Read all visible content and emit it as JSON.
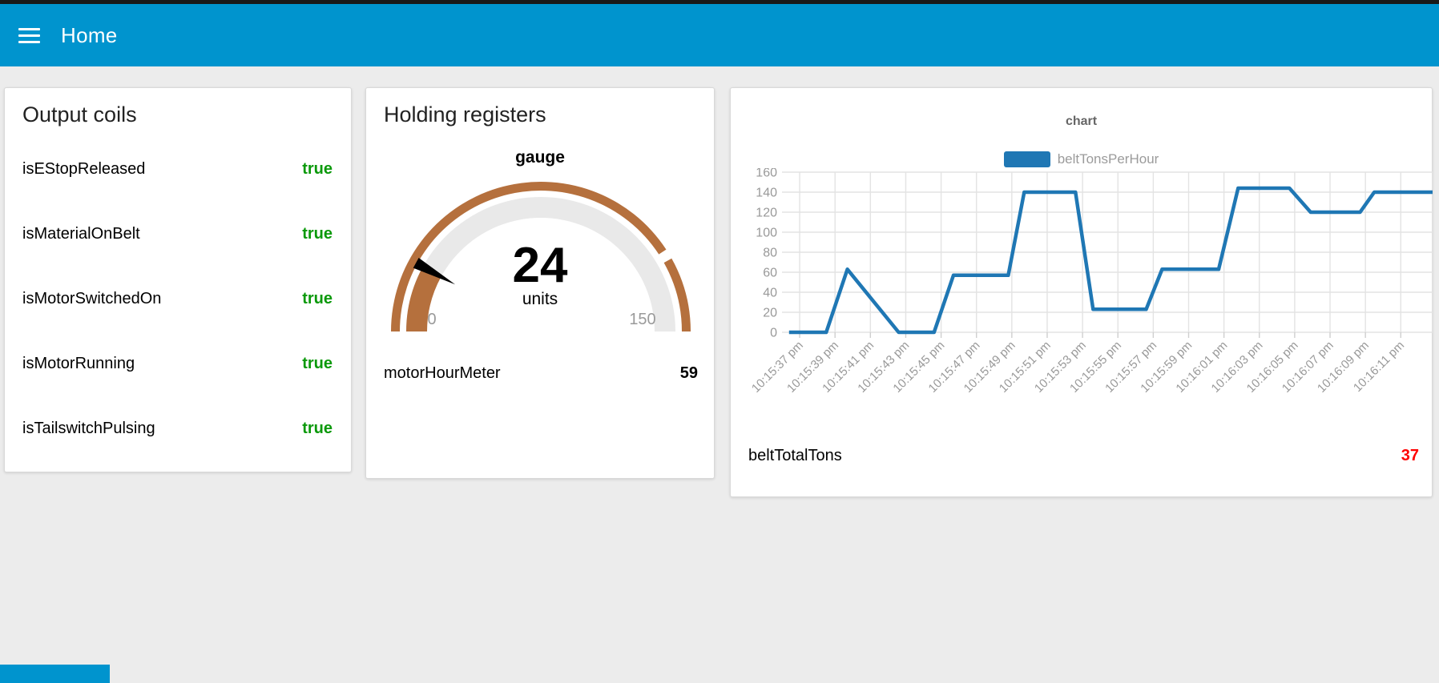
{
  "header": {
    "title": "Home"
  },
  "colors": {
    "appbar": "#0094ce",
    "page_background": "#ececec",
    "boolean_true": "#0b990b",
    "gauge_arc": "#b5703d",
    "gauge_track": "#e9e9e9",
    "gauge_needle": "#000000",
    "chart_line": "#1f77b4",
    "axis_text": "#999999",
    "grid_line": "#e3e3e3",
    "footer_value_red": "#ff0000"
  },
  "cards": {
    "output_coils": {
      "title": "Output coils",
      "rows": [
        {
          "label": "isEStopReleased",
          "value": "true"
        },
        {
          "label": "isMaterialOnBelt",
          "value": "true"
        },
        {
          "label": "isMotorSwitchedOn",
          "value": "true"
        },
        {
          "label": "isMotorRunning",
          "value": "true"
        },
        {
          "label": "isTailswitchPulsing",
          "value": "true"
        }
      ]
    },
    "holding_registers": {
      "title": "Holding registers",
      "gauge": {
        "title": "gauge",
        "value": "24",
        "value_num": 24,
        "units": "units",
        "min": "0",
        "max": "150",
        "min_num": 0,
        "max_num": 150,
        "ring_gap_value": 124
      },
      "rows": [
        {
          "label": "motorHourMeter",
          "value": "59"
        }
      ]
    },
    "chart_card": {
      "footer": {
        "label": "beltTotalTons",
        "value": "37"
      }
    }
  },
  "chart_data": {
    "type": "line",
    "title": "chart",
    "legend_position": "top",
    "grid": true,
    "ylim": [
      0,
      160
    ],
    "y_ticks": [
      0,
      20,
      40,
      60,
      80,
      100,
      120,
      140,
      160
    ],
    "x_range": [
      0,
      36.8
    ],
    "x_tick_offsets": [
      1,
      3,
      5,
      7,
      9,
      11,
      13,
      15,
      17,
      19,
      21,
      23,
      25,
      27,
      29,
      31,
      33,
      35
    ],
    "x_tick_labels": [
      "10:15:37 pm",
      "10:15:39 pm",
      "10:15:41 pm",
      "10:15:43 pm",
      "10:15:45 pm",
      "10:15:47 pm",
      "10:15:49 pm",
      "10:15:51 pm",
      "10:15:53 pm",
      "10:15:55 pm",
      "10:15:57 pm",
      "10:15:59 pm",
      "10:16:01 pm",
      "10:16:03 pm",
      "10:16:05 pm",
      "10:16:07 pm",
      "10:16:09 pm",
      "10:16:11 pm"
    ],
    "series": [
      {
        "name": "beltTonsPerHour",
        "color": "#1f77b4",
        "points": [
          [
            0.4,
            0
          ],
          [
            2.5,
            0
          ],
          [
            3.7,
            63
          ],
          [
            6.6,
            0
          ],
          [
            8.6,
            0
          ],
          [
            9.7,
            57
          ],
          [
            12.8,
            57
          ],
          [
            13.7,
            140
          ],
          [
            16.6,
            140
          ],
          [
            17.6,
            23
          ],
          [
            20.6,
            23
          ],
          [
            21.5,
            63
          ],
          [
            24.7,
            63
          ],
          [
            25.8,
            144
          ],
          [
            28.7,
            144
          ],
          [
            29.9,
            120
          ],
          [
            32.7,
            120
          ],
          [
            33.5,
            140
          ],
          [
            36.8,
            140
          ]
        ]
      }
    ]
  }
}
